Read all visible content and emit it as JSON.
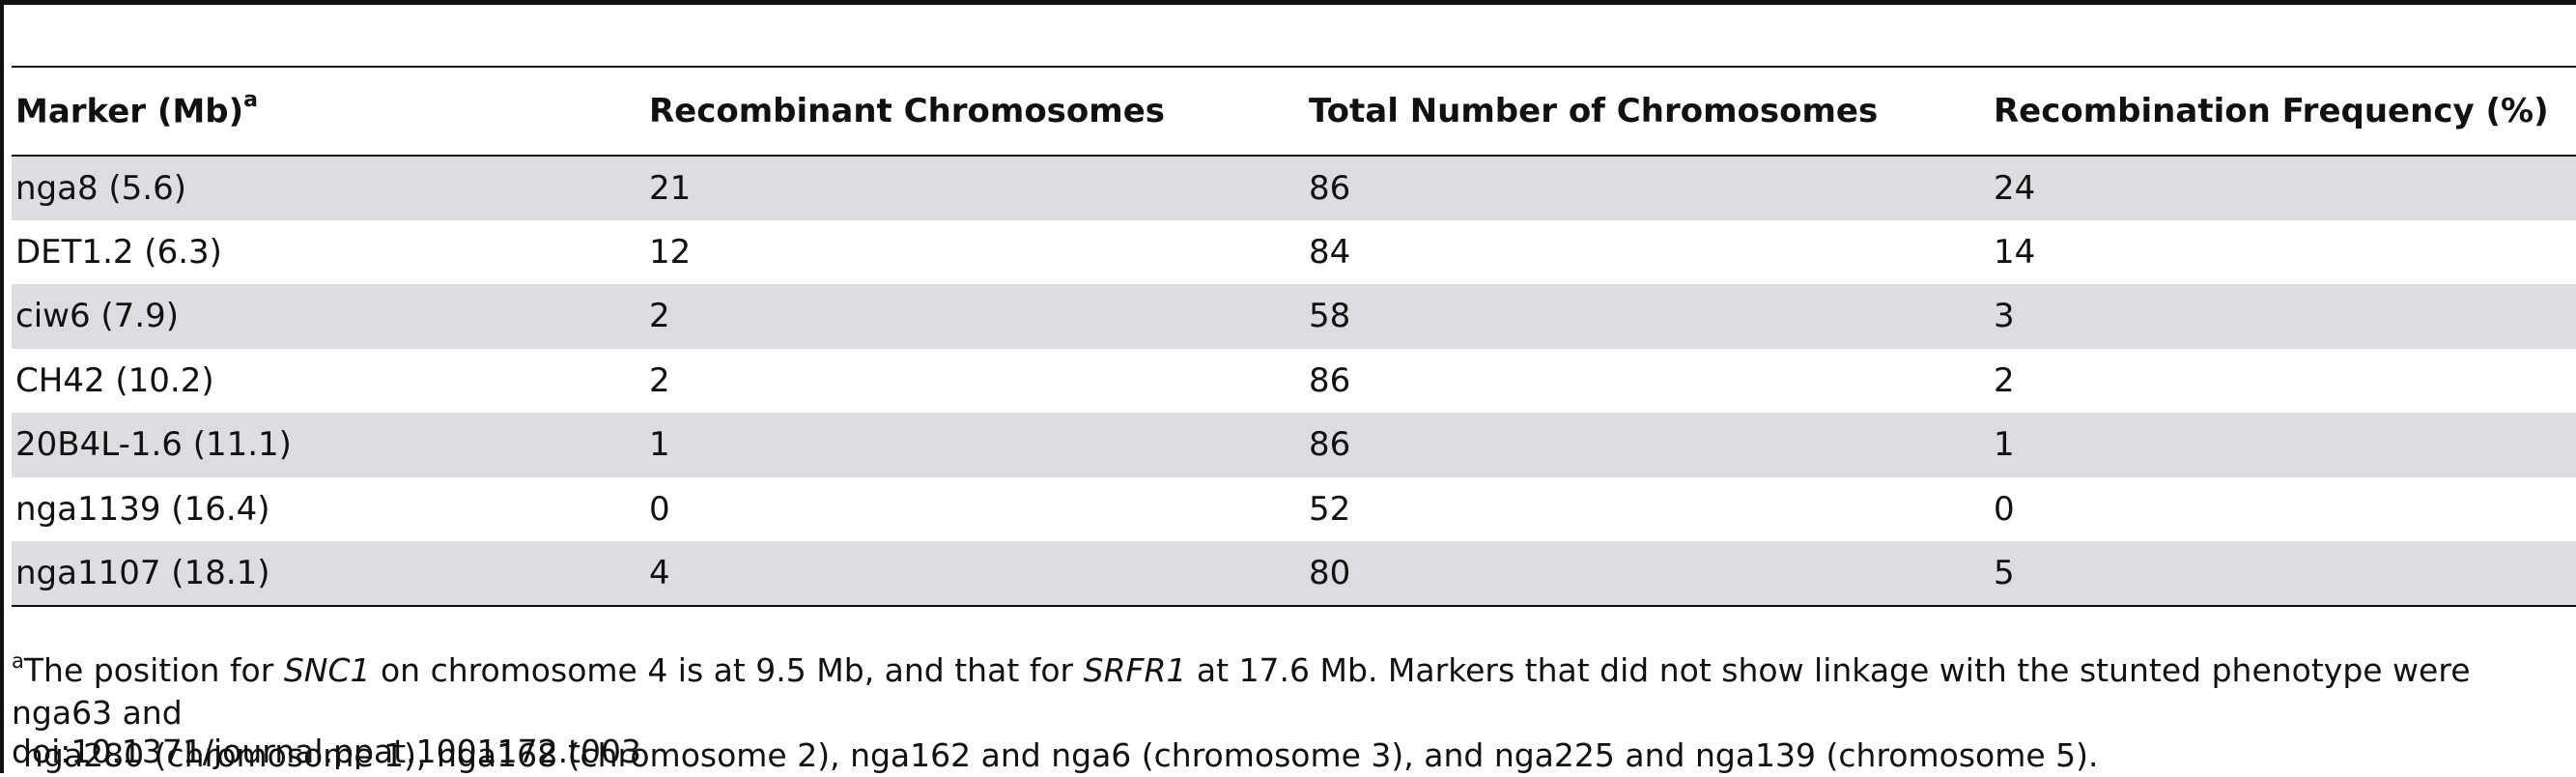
{
  "table": {
    "headers": {
      "marker": "Marker (Mb)",
      "marker_sup": "a",
      "recombinant": "Recombinant Chromosomes",
      "total": "Total Number of Chromosomes",
      "frequency": "Recombination Frequency (%)"
    },
    "rows": [
      {
        "marker": "nga8 (5.6)",
        "recombinant": "21",
        "total": "86",
        "frequency": "24"
      },
      {
        "marker": "DET1.2 (6.3)",
        "recombinant": "12",
        "total": "84",
        "frequency": "14"
      },
      {
        "marker": "ciw6 (7.9)",
        "recombinant": "2",
        "total": "58",
        "frequency": "3"
      },
      {
        "marker": "CH42 (10.2)",
        "recombinant": "2",
        "total": "86",
        "frequency": "2"
      },
      {
        "marker": "20B4L-1.6 (11.1)",
        "recombinant": "1",
        "total": "86",
        "frequency": "1"
      },
      {
        "marker": "nga1139 (16.4)",
        "recombinant": "0",
        "total": "52",
        "frequency": "0"
      },
      {
        "marker": "nga1107 (18.1)",
        "recombinant": "4",
        "total": "80",
        "frequency": "5"
      }
    ]
  },
  "footnote": {
    "sup": "a",
    "part1": "The position for ",
    "gene1": "SNC1",
    "part2": " on chromosome 4 is at 9.5 Mb, and that for ",
    "gene2": "SRFR1",
    "part3": " at 17.6 Mb. Markers that did not show linkage with the stunted phenotype were nga63 and",
    "line2": "nga280 (chromosome 1), nga168 (chromosome 2), nga162 and nga6 (chromosome 3), and nga225 and nga139 (chromosome 5)."
  },
  "doi": "doi:10.1371/journal.ppat.1001172.t003"
}
